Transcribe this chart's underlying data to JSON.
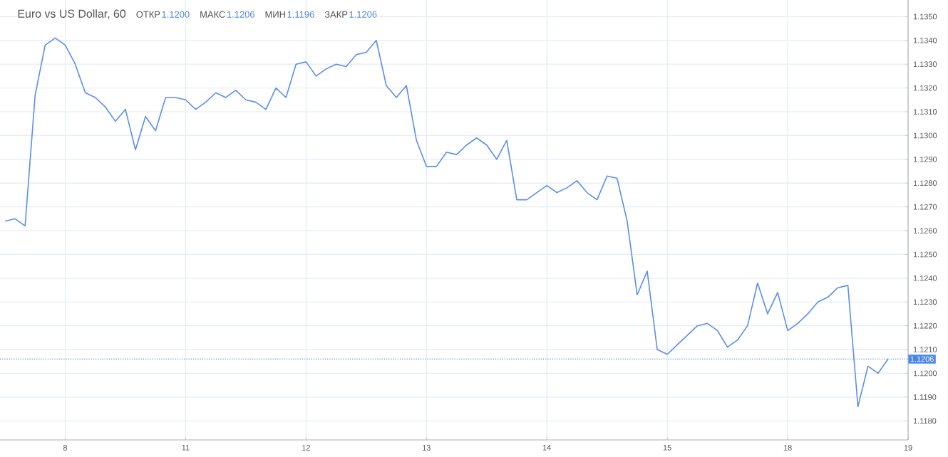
{
  "chart_data": {
    "type": "line",
    "title": "Euro vs US Dollar, 60",
    "annotations": [
      "ОТКР",
      "1.1200",
      "МАКС",
      "1.1206",
      "МИН",
      "1.1196",
      "ЗАКР",
      "1.1206"
    ],
    "categories": [
      null,
      null,
      null,
      null,
      null,
      null,
      "8",
      null,
      null,
      null,
      null,
      null,
      null,
      null,
      null,
      null,
      null,
      null,
      "11",
      null,
      null,
      null,
      null,
      null,
      null,
      null,
      null,
      null,
      null,
      null,
      "12",
      null,
      null,
      null,
      null,
      null,
      null,
      null,
      null,
      null,
      null,
      null,
      "13",
      null,
      null,
      null,
      null,
      null,
      null,
      null,
      null,
      null,
      null,
      null,
      "14",
      null,
      null,
      null,
      null,
      null,
      null,
      null,
      null,
      null,
      null,
      null,
      "15",
      null,
      null,
      null,
      null,
      null,
      null,
      null,
      null,
      null,
      null,
      null,
      "18",
      null,
      null,
      null,
      null,
      null,
      null,
      null,
      null,
      null,
      null,
      null,
      "19"
    ],
    "series": [
      {
        "color": "#5b8def",
        "values": [
          1.1264,
          1.1265,
          1.1262,
          1.1317,
          1.1338,
          1.1341,
          1.1338,
          1.133,
          1.1318,
          1.1316,
          1.1312,
          1.1306,
          1.1311,
          1.1294,
          1.1308,
          1.1302,
          1.1316,
          1.1316,
          1.1315,
          1.1311,
          1.1314,
          1.1318,
          1.1316,
          1.1319,
          1.1315,
          1.1314,
          1.1311,
          1.132,
          1.1316,
          1.133,
          1.1331,
          1.1325,
          1.1328,
          1.133,
          1.1329,
          1.1334,
          1.1335,
          1.134,
          1.1321,
          1.1316,
          1.1321,
          1.1298,
          1.1287,
          1.1287,
          1.1293,
          1.1292,
          1.1296,
          1.1299,
          1.1296,
          1.129,
          1.1298,
          1.1273,
          1.1273,
          1.1276,
          1.1279,
          1.1276,
          1.1278,
          1.1281,
          1.1276,
          1.1273,
          1.1283,
          1.1282,
          1.1264,
          1.1233,
          1.1243,
          1.121,
          1.1208,
          1.1212,
          1.1216,
          1.122,
          1.1221,
          1.1218,
          1.1211,
          1.1214,
          1.122,
          1.1238,
          1.1225,
          1.1234,
          1.1218,
          1.1221,
          1.1225,
          1.123,
          1.1232,
          1.1236,
          1.1237,
          1.1186,
          1.1203,
          1.12,
          1.1206,
          null,
          null
        ]
      }
    ],
    "ylim": [
      1.1172,
      1.1357
    ],
    "yticks": [
      {
        "value": 1.118,
        "label": "1.1180"
      },
      {
        "value": 1.119,
        "label": "1.1190"
      },
      {
        "value": 1.12,
        "label": "1.1200"
      },
      {
        "value": 1.121,
        "label": "1.1210"
      },
      {
        "value": 1.122,
        "label": "1.1220"
      },
      {
        "value": 1.123,
        "label": "1.1230"
      },
      {
        "value": 1.124,
        "label": "1.1240"
      },
      {
        "value": 1.125,
        "label": "1.1250"
      },
      {
        "value": 1.126,
        "label": "1.1260"
      },
      {
        "value": 1.127,
        "label": "1.1270"
      },
      {
        "value": 1.128,
        "label": "1.1280"
      },
      {
        "value": 1.129,
        "label": "1.1290"
      },
      {
        "value": 1.13,
        "label": "1.1300"
      },
      {
        "value": 1.131,
        "label": "1.1310"
      },
      {
        "value": 1.132,
        "label": "1.1320"
      },
      {
        "value": 1.133,
        "label": "1.1330"
      },
      {
        "value": 1.134,
        "label": "1.1340"
      },
      {
        "value": 1.135,
        "label": "1.1350"
      }
    ],
    "ref_lines": [
      {
        "axis": "y",
        "value": 1.1206,
        "label": "1.1206",
        "color": "#4a86e8",
        "line_style": "dotted"
      }
    ],
    "grid": true,
    "marker": "none",
    "line_style": "solid"
  }
}
